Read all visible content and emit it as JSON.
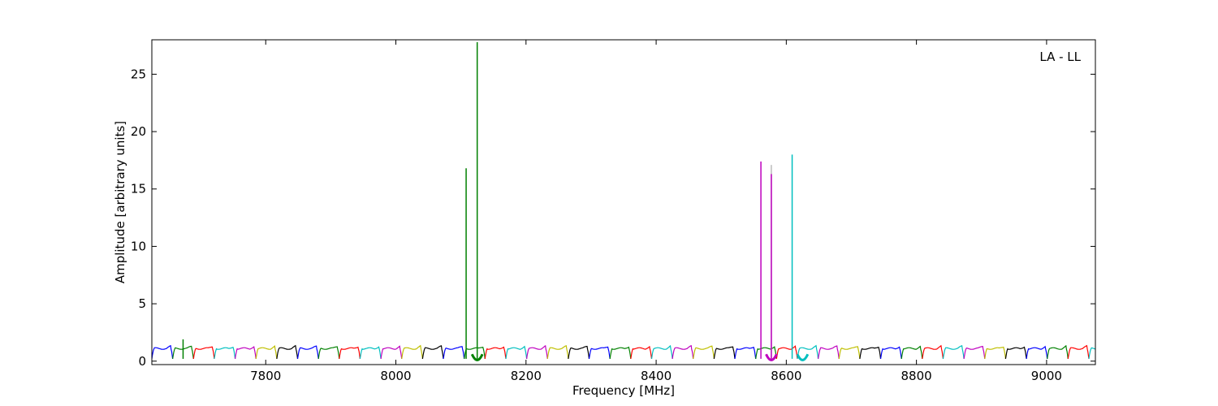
{
  "chart_data": {
    "type": "line",
    "title": "",
    "annotation": "LA - LL",
    "xlabel": "Frequency [MHz]",
    "ylabel": "Amplitude [arbitrary units]",
    "xlim": [
      7625,
      9075
    ],
    "ylim": [
      -0.3,
      28
    ],
    "xticks": [
      7800,
      8000,
      8200,
      8400,
      8600,
      8800,
      9000
    ],
    "yticks": [
      0,
      5,
      10,
      15,
      20,
      25
    ],
    "grid": false,
    "legend": "none",
    "channel_width_mhz": 32,
    "color_cycle": [
      "#0000ff",
      "#008000",
      "#ff0000",
      "#00bfbf",
      "#bf00bf",
      "#bfbf00",
      "#000000"
    ],
    "first_channel_start_mhz": 7625,
    "baseline_amplitude": 1.1,
    "edge_dip_amplitude": 0.2,
    "spikes": [
      {
        "x": 7673,
        "y": 1.9,
        "color": "#008000"
      },
      {
        "x": 8108,
        "y": 16.8,
        "color": "#008000"
      },
      {
        "x": 8125,
        "y": 27.8,
        "color": "#008000"
      },
      {
        "x": 8561,
        "y": 17.4,
        "color": "#bf00bf"
      },
      {
        "x": 8577,
        "y": 17.1,
        "color": "#bbbbbb"
      },
      {
        "x": 8577,
        "y": 16.3,
        "color": "#bf00bf"
      },
      {
        "x": 8609,
        "y": 18.0,
        "color": "#00bfbf"
      }
    ]
  }
}
